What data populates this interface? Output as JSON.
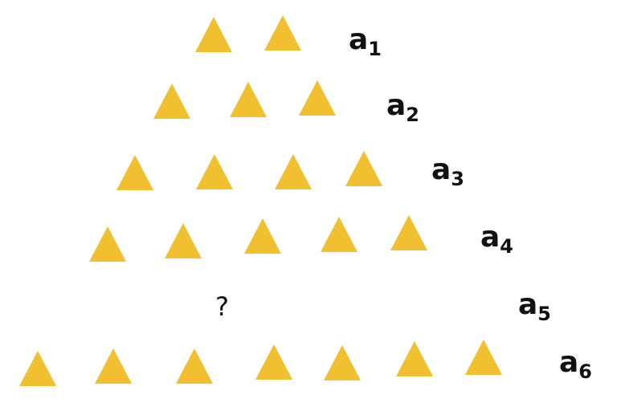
{
  "triangle_color": "#F0C030",
  "rows": [
    {
      "label_base": "a",
      "label_sub": "1",
      "count": 2
    },
    {
      "label_base": "a",
      "label_sub": "2",
      "count": 3
    },
    {
      "label_base": "a",
      "label_sub": "3",
      "count": 4
    },
    {
      "label_base": "a",
      "label_sub": "4",
      "count": 5
    },
    {
      "label_base": "a",
      "label_sub": "5",
      "count": null,
      "unknown_text": "?"
    },
    {
      "label_base": "a",
      "label_sub": "6",
      "count": 7
    }
  ]
}
